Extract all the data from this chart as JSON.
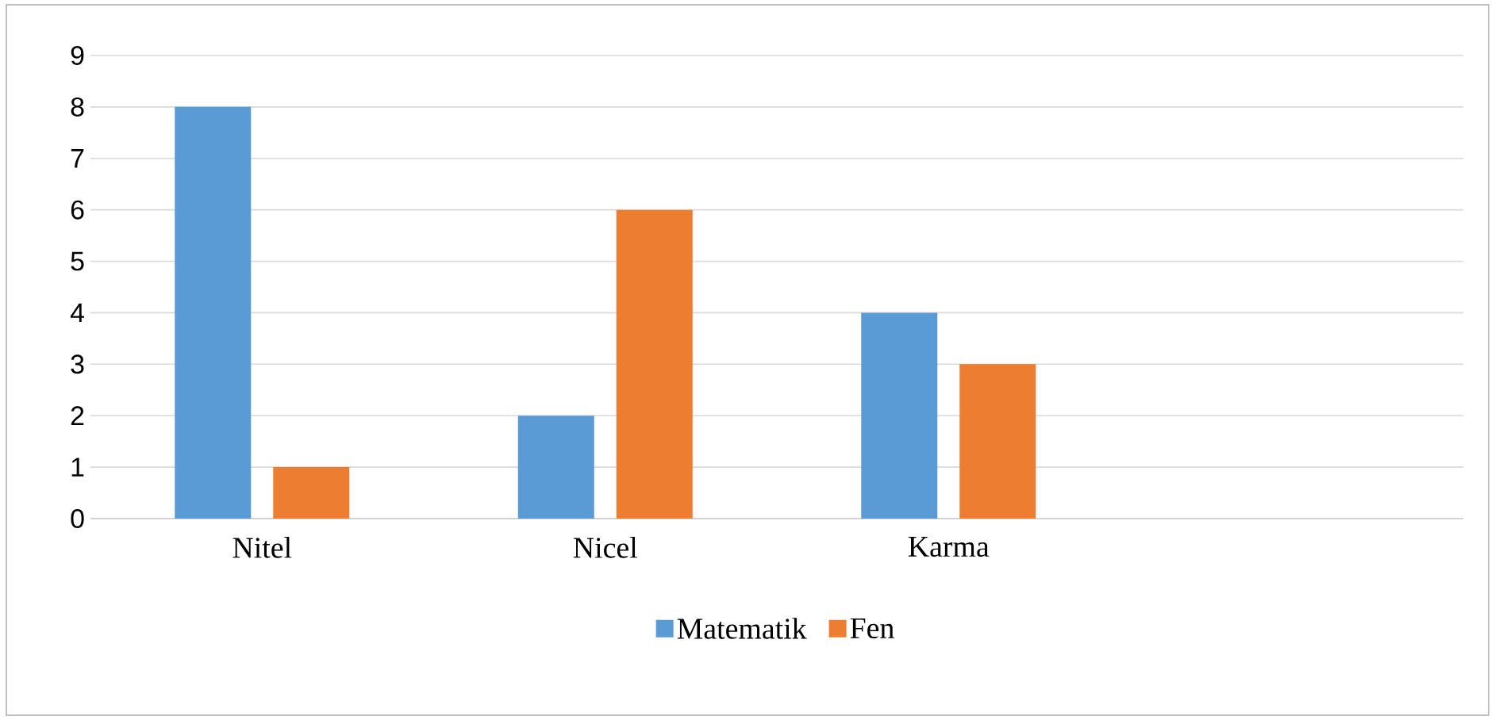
{
  "chart_data": {
    "type": "bar",
    "categories": [
      "Nitel",
      "Nicel",
      "Karma",
      null
    ],
    "series": [
      {
        "name": "Matematik",
        "color": "#5b9bd5",
        "values": [
          8,
          2,
          4,
          null
        ]
      },
      {
        "name": "Fen",
        "color": "#ed7d31",
        "values": [
          1,
          6,
          3,
          null
        ]
      }
    ],
    "ylim": [
      0,
      9
    ],
    "yticks": [
      0,
      1,
      2,
      3,
      4,
      5,
      6,
      7,
      8,
      9
    ],
    "grid": "y",
    "legend": "bottom"
  }
}
